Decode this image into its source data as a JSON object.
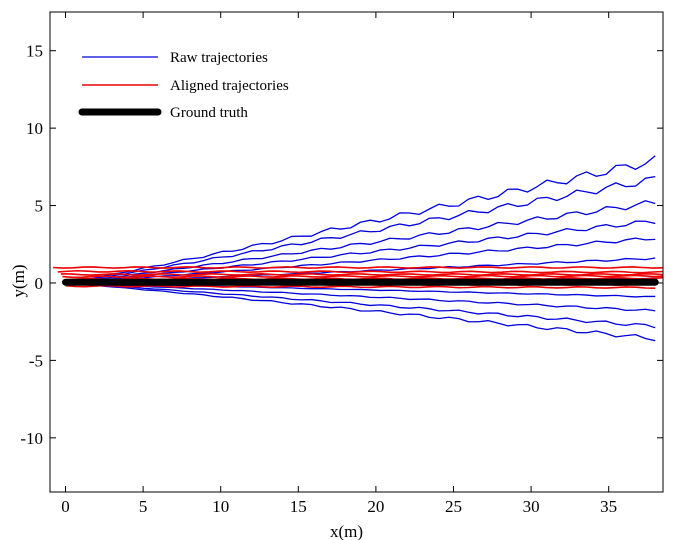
{
  "chart_data": {
    "type": "line",
    "title": "",
    "xlabel": "x(m)",
    "ylabel": "y(m)",
    "xlim": [
      -1,
      38.5
    ],
    "ylim": [
      -13.5,
      17.5
    ],
    "xticks": [
      0,
      5,
      10,
      15,
      20,
      25,
      30,
      35
    ],
    "yticks": [
      -10,
      -5,
      0,
      5,
      10,
      15
    ],
    "grid": false,
    "legend_position": "top-left",
    "colors": {
      "raw": "#0000dd",
      "aligned": "#ee0000",
      "truth": "#000000"
    },
    "legend": [
      {
        "label": "Raw trajectories",
        "color": "#0000dd",
        "kind": "raw"
      },
      {
        "label": "Aligned trajectories",
        "color": "#ee0000",
        "kind": "aligned"
      },
      {
        "label": "Ground truth",
        "color": "#000000",
        "kind": "truth"
      }
    ],
    "series": [
      {
        "group": "raw",
        "x": [
          0,
          38
        ],
        "y": [
          0,
          7.9
        ]
      },
      {
        "group": "raw",
        "x": [
          0,
          38
        ],
        "y": [
          0,
          6.7
        ]
      },
      {
        "group": "raw",
        "x": [
          0,
          38
        ],
        "y": [
          0,
          5.2
        ]
      },
      {
        "group": "raw",
        "x": [
          0,
          38
        ],
        "y": [
          0,
          4.0
        ]
      },
      {
        "group": "raw",
        "x": [
          0,
          38
        ],
        "y": [
          0,
          2.9
        ]
      },
      {
        "group": "raw",
        "x": [
          0,
          38
        ],
        "y": [
          0,
          1.6
        ]
      },
      {
        "group": "raw",
        "x": [
          0,
          38
        ],
        "y": [
          0,
          0.3
        ]
      },
      {
        "group": "raw",
        "x": [
          0,
          38
        ],
        "y": [
          0,
          -0.9
        ]
      },
      {
        "group": "raw",
        "x": [
          0,
          38
        ],
        "y": [
          0,
          -1.8
        ]
      },
      {
        "group": "raw",
        "x": [
          0,
          38
        ],
        "y": [
          0,
          -2.8
        ]
      },
      {
        "group": "raw",
        "x": [
          0,
          38
        ],
        "y": [
          0,
          -3.6
        ]
      },
      {
        "group": "aligned",
        "x": [
          -0.8,
          38.5
        ],
        "y": [
          1.0,
          1.0
        ]
      },
      {
        "group": "aligned",
        "x": [
          -0.5,
          38.5
        ],
        "y": [
          0.75,
          0.7
        ]
      },
      {
        "group": "aligned",
        "x": [
          -0.3,
          38.5
        ],
        "y": [
          0.55,
          0.55
        ]
      },
      {
        "group": "aligned",
        "x": [
          -0.2,
          38.5
        ],
        "y": [
          0.4,
          0.45
        ]
      },
      {
        "group": "aligned",
        "x": [
          0,
          38.5
        ],
        "y": [
          0.25,
          0.3
        ]
      },
      {
        "group": "aligned",
        "x": [
          0,
          38
        ],
        "y": [
          -0.1,
          -0.1
        ]
      },
      {
        "group": "aligned",
        "x": [
          0,
          38
        ],
        "y": [
          -0.2,
          -0.3
        ]
      },
      {
        "group": "truth",
        "x": [
          0,
          38
        ],
        "y": [
          0.05,
          0.05
        ]
      }
    ]
  }
}
